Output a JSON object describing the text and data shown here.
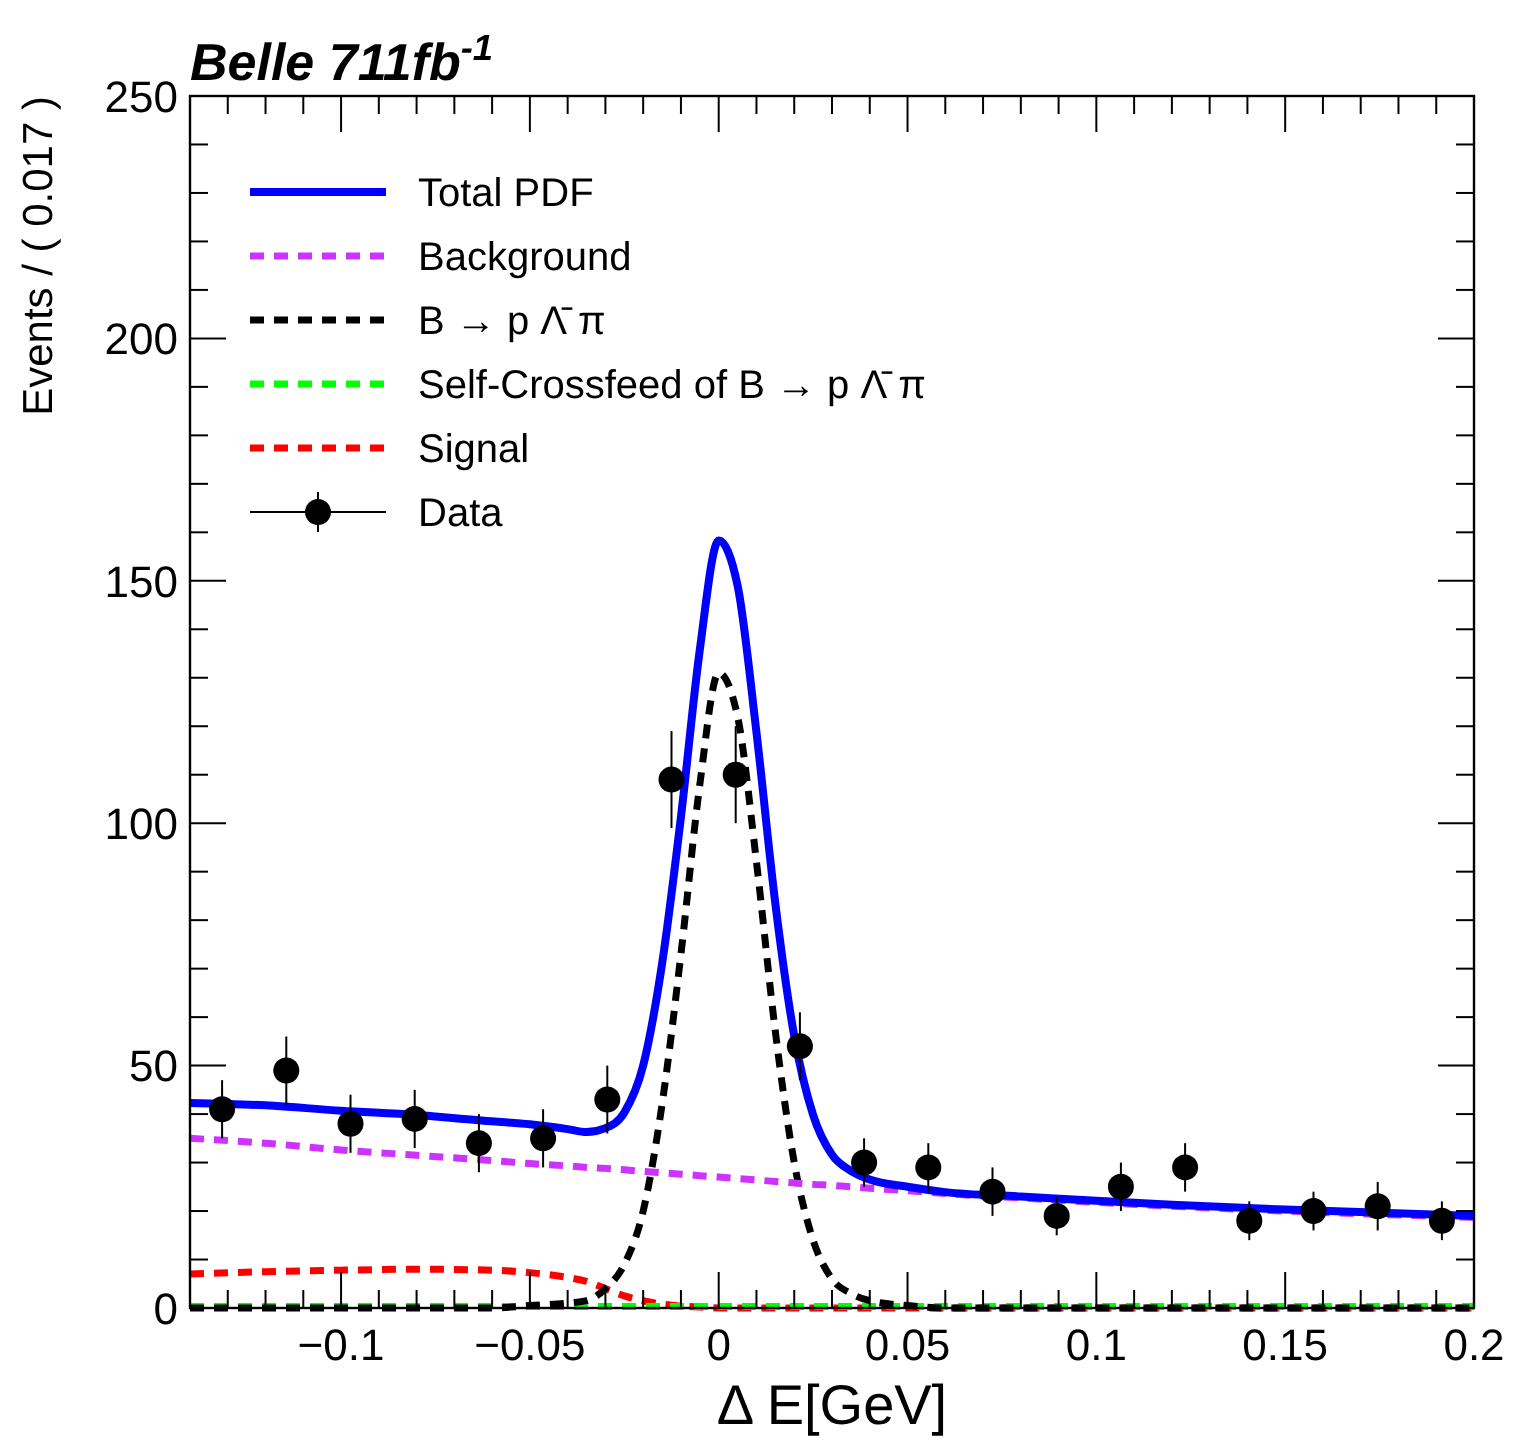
{
  "chart_data": {
    "type": "line",
    "title": "Belle 711fb$^{-1}$",
    "xlabel": "Δ E[GeV]",
    "ylabel": "Events / ( 0.017 )",
    "xlim": [
      -0.14,
      0.2
    ],
    "ylim": [
      0,
      250
    ],
    "xticks": [
      {
        "value": -0.13,
        "label": null
      },
      {
        "value": -0.12,
        "label": null
      },
      {
        "value": -0.11,
        "label": null
      },
      {
        "value": -0.1,
        "label": "−0.1"
      },
      {
        "value": -0.09,
        "label": null
      },
      {
        "value": -0.08,
        "label": null
      },
      {
        "value": -0.07,
        "label": null
      },
      {
        "value": -0.06,
        "label": null
      },
      {
        "value": -0.05,
        "label": "−0.05"
      },
      {
        "value": -0.04,
        "label": null
      },
      {
        "value": -0.03,
        "label": null
      },
      {
        "value": -0.02,
        "label": null
      },
      {
        "value": -0.01,
        "label": null
      },
      0,
      {
        "value": 0.01,
        "label": null
      },
      {
        "value": 0.02,
        "label": null
      },
      {
        "value": 0.03,
        "label": null
      },
      {
        "value": 0.04,
        "label": null
      },
      0.05,
      {
        "value": 0.06,
        "label": null
      },
      {
        "value": 0.07,
        "label": null
      },
      {
        "value": 0.08,
        "label": null
      },
      {
        "value": 0.09,
        "label": null
      },
      0.1,
      {
        "value": 0.11,
        "label": null
      },
      {
        "value": 0.12,
        "label": null
      },
      {
        "value": 0.13,
        "label": null
      },
      {
        "value": 0.14,
        "label": null
      },
      0.15,
      {
        "value": 0.16,
        "label": null
      },
      {
        "value": 0.17,
        "label": null
      },
      {
        "value": 0.18,
        "label": null
      },
      {
        "value": 0.19,
        "label": null
      },
      0.2
    ],
    "yticks": [
      0,
      {
        "value": 10,
        "label": null
      },
      {
        "value": 20,
        "label": null
      },
      {
        "value": 30,
        "label": null
      },
      {
        "value": 40,
        "label": null
      },
      50,
      {
        "value": 60,
        "label": null
      },
      {
        "value": 70,
        "label": null
      },
      {
        "value": 80,
        "label": null
      },
      {
        "value": 90,
        "label": null
      },
      100,
      {
        "value": 110,
        "label": null
      },
      {
        "value": 120,
        "label": null
      },
      {
        "value": 130,
        "label": null
      },
      {
        "value": 140,
        "label": null
      },
      150,
      {
        "value": 160,
        "label": null
      },
      {
        "value": 170,
        "label": null
      },
      {
        "value": 180,
        "label": null
      },
      {
        "value": 190,
        "label": null
      },
      200,
      {
        "value": 210,
        "label": null
      },
      {
        "value": 220,
        "label": null
      },
      {
        "value": 230,
        "label": null
      },
      {
        "value": 240,
        "label": null
      },
      250
    ],
    "grid": false,
    "legend": "top left",
    "x": [
      -0.14,
      -0.12,
      -0.1,
      -0.08,
      -0.06,
      -0.05,
      -0.04,
      -0.035,
      -0.03,
      -0.025,
      -0.02,
      -0.015,
      -0.01,
      -0.005,
      0,
      0.005,
      0.01,
      0.015,
      0.02,
      0.025,
      0.03,
      0.035,
      0.04,
      0.05,
      0.06,
      0.08,
      0.1,
      0.12,
      0.15,
      0.2
    ],
    "series": [
      {
        "name": "Total PDF",
        "color": "#0000ff",
        "line_style": "solid",
        "values": [
          42.3,
          41.8,
          40.7,
          39.8,
          38.5,
          37.9,
          36.9,
          36.3,
          37.1,
          40.3,
          50,
          71,
          101.3,
          135.8,
          158.3,
          149,
          118.7,
          83.4,
          56.1,
          39.8,
          31.6,
          28.3,
          26.5,
          25,
          23.9,
          23,
          22.1,
          21.3,
          20.3,
          19
        ]
      },
      {
        "name": "Background",
        "color": "#cc33ff",
        "line_style": "dashed",
        "values": [
          35,
          34,
          32.6,
          31.5,
          30.4,
          29.8,
          29.3,
          29,
          28.8,
          28.5,
          28.2,
          27.9,
          27.6,
          27.3,
          27,
          26.7,
          26.4,
          26.1,
          25.8,
          25.5,
          25.3,
          25,
          24.7,
          24.2,
          23.6,
          22.7,
          21.8,
          21,
          20,
          18.7
        ]
      },
      {
        "name": "B → p Λ̄ π",
        "color": "#000000",
        "line_style": "dashed",
        "values": [
          0,
          0,
          0,
          0,
          0,
          0.5,
          1,
          1.5,
          4,
          9,
          20,
          42,
          73,
          108,
          131,
          122,
          92,
          57,
          30,
          14,
          6,
          3,
          1.5,
          0.5,
          0,
          0,
          0,
          0,
          0,
          0
        ]
      },
      {
        "name": "Self-Crossfeed of B → p Λ̄ π",
        "color": "#00ff00",
        "line_style": "dashed",
        "values": [
          0.3,
          0.3,
          0.3,
          0.3,
          0.3,
          0.3,
          0.3,
          0.3,
          0.3,
          0.3,
          0.3,
          0.3,
          0.3,
          0.3,
          0.3,
          0.3,
          0.3,
          0.3,
          0.3,
          0.3,
          0.3,
          0.3,
          0.3,
          0.3,
          0.3,
          0.3,
          0.3,
          0.3,
          0.3,
          0.3
        ]
      },
      {
        "name": "Signal",
        "color": "#ff0000",
        "line_style": "dashed",
        "values": [
          7,
          7.5,
          7.8,
          8,
          7.8,
          7.3,
          6.3,
          5.5,
          4,
          2.5,
          1.5,
          0.8,
          0.4,
          0.2,
          0,
          0,
          0,
          0,
          0,
          0,
          0,
          0,
          0,
          0,
          0,
          0,
          0,
          0,
          0,
          0
        ]
      },
      {
        "name": "Data",
        "type": "scatter",
        "color": "#000000",
        "marker": "circle",
        "x": [
          -0.1315,
          -0.1145,
          -0.0975,
          -0.0805,
          -0.0635,
          -0.0465,
          -0.0295,
          -0.0125,
          0.0045,
          0.0215,
          0.0385,
          0.0555,
          0.0725,
          0.0895,
          0.1065,
          0.1235,
          0.1405,
          0.1575,
          0.1745,
          0.1915
        ],
        "values": [
          41,
          49,
          38,
          39,
          34,
          35,
          43,
          109,
          110,
          54,
          30,
          29,
          24,
          19,
          25,
          29,
          18,
          20,
          21,
          18
        ],
        "errors": [
          6,
          7,
          6,
          6,
          6,
          6,
          7,
          10,
          10,
          7,
          5,
          5,
          5,
          4,
          5,
          5,
          4,
          4,
          5,
          4
        ]
      }
    ]
  }
}
